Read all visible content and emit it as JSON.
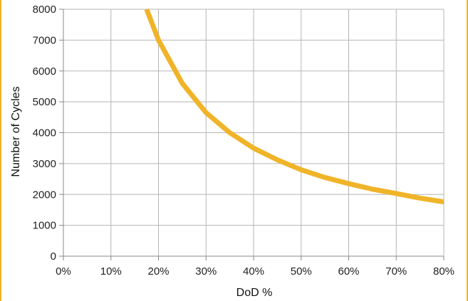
{
  "chart_data": {
    "type": "line",
    "xlabel": "DoD %",
    "ylabel": "Number of Cycles",
    "xlim": [
      0,
      80
    ],
    "ylim": [
      0,
      8000
    ],
    "x_ticks": [
      "0%",
      "10%",
      "20%",
      "30%",
      "40%",
      "50%",
      "60%",
      "70%",
      "80%"
    ],
    "y_ticks": [
      "0",
      "1000",
      "2000",
      "3000",
      "4000",
      "5000",
      "6000",
      "7000",
      "8000"
    ],
    "grid": true,
    "legend": "none",
    "series": [
      {
        "color": "#f0b429",
        "x": [
          17.5,
          20,
          25,
          30,
          35,
          40,
          45,
          50,
          55,
          60,
          65,
          70,
          75,
          80
        ],
        "y": [
          8000,
          7000,
          5600,
          4650,
          4000,
          3500,
          3120,
          2800,
          2550,
          2350,
          2170,
          2030,
          1880,
          1760
        ]
      }
    ]
  }
}
